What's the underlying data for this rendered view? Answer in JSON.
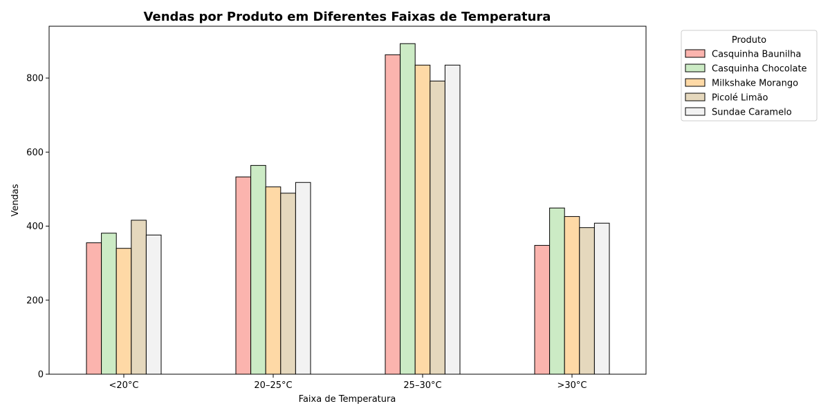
{
  "chart_data": {
    "type": "bar",
    "title": "Vendas por Produto em Diferentes Faixas de Temperatura",
    "xlabel": "Faixa de Temperatura",
    "ylabel": "Vendas",
    "categories": [
      "<20°C",
      "20–25°C",
      "25–30°C",
      ">30°C"
    ],
    "ylim": [
      0,
      940
    ],
    "yticks": [
      0,
      200,
      400,
      600,
      800
    ],
    "grid": false,
    "legend": {
      "title": "Produto",
      "placement": "outside-top-right"
    },
    "series": [
      {
        "name": "Casquinha Baunilha",
        "color": "#fbb4ae",
        "values": [
          355,
          533,
          863,
          348
        ]
      },
      {
        "name": "Casquinha Chocolate",
        "color": "#ccebc5",
        "values": [
          381,
          564,
          893,
          449
        ]
      },
      {
        "name": "Milkshake Morango",
        "color": "#fed9a6",
        "values": [
          340,
          506,
          835,
          426
        ]
      },
      {
        "name": "Picolé Limão",
        "color": "#e5d8bd",
        "values": [
          416,
          489,
          792,
          396
        ]
      },
      {
        "name": "Sundae Caramelo",
        "color": "#f2f2f2",
        "values": [
          376,
          518,
          835,
          408
        ]
      }
    ]
  }
}
